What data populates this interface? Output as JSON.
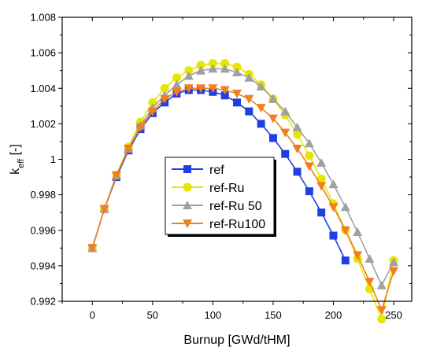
{
  "chart_data": {
    "type": "line",
    "xlabel": "Burnup [GWd/tHM]",
    "ylabel_main": "k",
    "ylabel_sub": "eff",
    "ylabel_unit": " [-]",
    "xlim": [
      -25,
      265
    ],
    "ylim": [
      0.992,
      1.008
    ],
    "xticks": [
      0,
      50,
      100,
      150,
      200,
      250
    ],
    "xtick_labels": [
      "0",
      "50",
      "100",
      "150",
      "200",
      "250"
    ],
    "yticks": [
      0.992,
      0.994,
      0.996,
      0.998,
      1.0,
      1.002,
      1.004,
      1.006,
      1.008
    ],
    "ytick_labels": [
      "0.992",
      "0.994",
      "0.996",
      "0.998",
      "1",
      "1.002",
      "1.004",
      "1.006",
      "1.008"
    ],
    "grid": false,
    "legend_position": "center-left",
    "series": [
      {
        "name": "ref",
        "color": "#1f3fe0",
        "marker": "square",
        "x": [
          0,
          10,
          20,
          30,
          40,
          50,
          60,
          70,
          80,
          90,
          100,
          110,
          120,
          130,
          140,
          150,
          160,
          170,
          180,
          190,
          200,
          210
        ],
        "y": [
          0.995,
          0.9972,
          0.999,
          1.0005,
          1.0017,
          1.0026,
          1.0032,
          1.0037,
          1.0039,
          1.0039,
          1.0038,
          1.0036,
          1.0032,
          1.0027,
          1.002,
          1.0012,
          1.0003,
          0.9993,
          0.9982,
          0.997,
          0.9957,
          0.9943
        ]
      },
      {
        "name": "ref-Ru",
        "color": "#e6e600",
        "marker": "circle",
        "x": [
          0,
          10,
          20,
          30,
          40,
          50,
          60,
          70,
          80,
          90,
          100,
          110,
          120,
          130,
          140,
          150,
          160,
          170,
          180,
          190,
          200,
          210,
          220,
          230,
          240,
          250
        ],
        "y": [
          0.995,
          0.9972,
          0.9991,
          1.0007,
          1.0021,
          1.0032,
          1.004,
          1.0046,
          1.005,
          1.0053,
          1.0054,
          1.0054,
          1.0052,
          1.0048,
          1.0042,
          1.0034,
          1.0025,
          1.0014,
          1.0002,
          0.9989,
          0.9975,
          0.996,
          0.9944,
          0.9927,
          0.991,
          0.9943
        ]
      },
      {
        "name": "ref-Ru 50",
        "color": "#a0a0a0",
        "marker": "triangle-up",
        "x": [
          0,
          10,
          20,
          30,
          40,
          50,
          60,
          70,
          80,
          90,
          100,
          110,
          120,
          130,
          140,
          150,
          160,
          170,
          180,
          190,
          200,
          210,
          220,
          230,
          240,
          250
        ],
        "y": [
          0.995,
          0.9972,
          0.9991,
          1.0006,
          1.0019,
          1.0029,
          1.0036,
          1.0042,
          1.0047,
          1.005,
          1.0051,
          1.0051,
          1.0049,
          1.0046,
          1.0041,
          1.0034,
          1.0027,
          1.0018,
          1.0009,
          0.9998,
          0.9986,
          0.9973,
          0.9959,
          0.9944,
          0.9929,
          0.9942
        ]
      },
      {
        "name": "ref-Ru100",
        "color": "#f07f1e",
        "marker": "triangle-down",
        "x": [
          0,
          10,
          20,
          30,
          40,
          50,
          60,
          70,
          80,
          90,
          100,
          110,
          120,
          130,
          140,
          150,
          160,
          170,
          180,
          190,
          200,
          210,
          220,
          230,
          240,
          250
        ],
        "y": [
          0.995,
          0.9972,
          0.9991,
          1.0006,
          1.0018,
          1.0027,
          1.0034,
          1.0038,
          1.004,
          1.004,
          1.004,
          1.0039,
          1.0037,
          1.0034,
          1.0029,
          1.0023,
          1.0015,
          1.0006,
          0.9996,
          0.9985,
          0.9973,
          0.996,
          0.9946,
          0.9931,
          0.9915,
          0.9937
        ]
      }
    ]
  }
}
